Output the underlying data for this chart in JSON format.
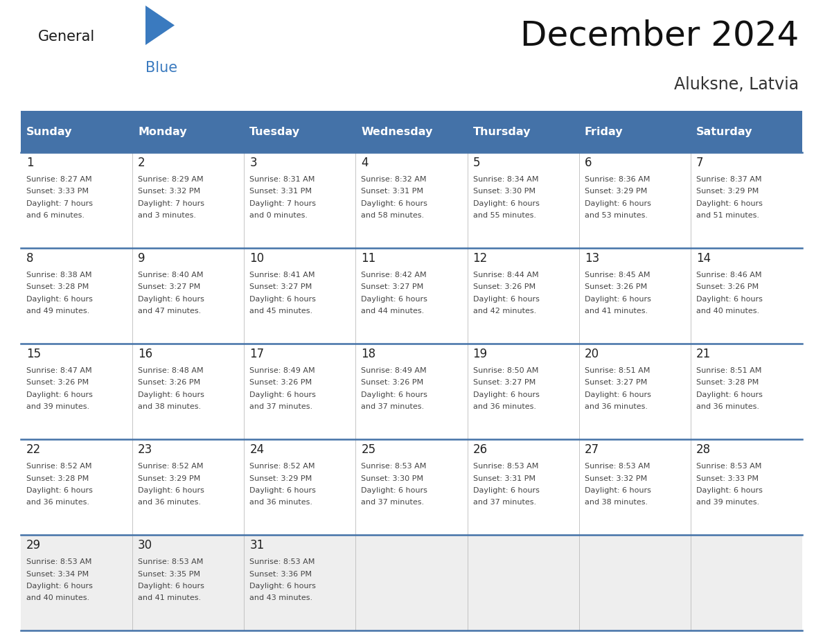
{
  "title": "December 2024",
  "subtitle": "Aluksne, Latvia",
  "days_of_week": [
    "Sunday",
    "Monday",
    "Tuesday",
    "Wednesday",
    "Thursday",
    "Friday",
    "Saturday"
  ],
  "header_bg": "#4472a8",
  "header_text_color": "#ffffff",
  "cell_bg_white": "#ffffff",
  "cell_bg_gray": "#eeeeee",
  "divider_color": "#4472a8",
  "text_color": "#444444",
  "day_num_color": "#222222",
  "logo_general_color": "#1a1a1a",
  "logo_blue_color": "#3a7abf",
  "calendar_data": [
    [
      {
        "day": 1,
        "sunrise": "8:27 AM",
        "sunset": "3:33 PM",
        "daylight": "7 hours",
        "daylight2": "and 6 minutes."
      },
      {
        "day": 2,
        "sunrise": "8:29 AM",
        "sunset": "3:32 PM",
        "daylight": "7 hours",
        "daylight2": "and 3 minutes."
      },
      {
        "day": 3,
        "sunrise": "8:31 AM",
        "sunset": "3:31 PM",
        "daylight": "7 hours",
        "daylight2": "and 0 minutes."
      },
      {
        "day": 4,
        "sunrise": "8:32 AM",
        "sunset": "3:31 PM",
        "daylight": "6 hours",
        "daylight2": "and 58 minutes."
      },
      {
        "day": 5,
        "sunrise": "8:34 AM",
        "sunset": "3:30 PM",
        "daylight": "6 hours",
        "daylight2": "and 55 minutes."
      },
      {
        "day": 6,
        "sunrise": "8:36 AM",
        "sunset": "3:29 PM",
        "daylight": "6 hours",
        "daylight2": "and 53 minutes."
      },
      {
        "day": 7,
        "sunrise": "8:37 AM",
        "sunset": "3:29 PM",
        "daylight": "6 hours",
        "daylight2": "and 51 minutes."
      }
    ],
    [
      {
        "day": 8,
        "sunrise": "8:38 AM",
        "sunset": "3:28 PM",
        "daylight": "6 hours",
        "daylight2": "and 49 minutes."
      },
      {
        "day": 9,
        "sunrise": "8:40 AM",
        "sunset": "3:27 PM",
        "daylight": "6 hours",
        "daylight2": "and 47 minutes."
      },
      {
        "day": 10,
        "sunrise": "8:41 AM",
        "sunset": "3:27 PM",
        "daylight": "6 hours",
        "daylight2": "and 45 minutes."
      },
      {
        "day": 11,
        "sunrise": "8:42 AM",
        "sunset": "3:27 PM",
        "daylight": "6 hours",
        "daylight2": "and 44 minutes."
      },
      {
        "day": 12,
        "sunrise": "8:44 AM",
        "sunset": "3:26 PM",
        "daylight": "6 hours",
        "daylight2": "and 42 minutes."
      },
      {
        "day": 13,
        "sunrise": "8:45 AM",
        "sunset": "3:26 PM",
        "daylight": "6 hours",
        "daylight2": "and 41 minutes."
      },
      {
        "day": 14,
        "sunrise": "8:46 AM",
        "sunset": "3:26 PM",
        "daylight": "6 hours",
        "daylight2": "and 40 minutes."
      }
    ],
    [
      {
        "day": 15,
        "sunrise": "8:47 AM",
        "sunset": "3:26 PM",
        "daylight": "6 hours",
        "daylight2": "and 39 minutes."
      },
      {
        "day": 16,
        "sunrise": "8:48 AM",
        "sunset": "3:26 PM",
        "daylight": "6 hours",
        "daylight2": "and 38 minutes."
      },
      {
        "day": 17,
        "sunrise": "8:49 AM",
        "sunset": "3:26 PM",
        "daylight": "6 hours",
        "daylight2": "and 37 minutes."
      },
      {
        "day": 18,
        "sunrise": "8:49 AM",
        "sunset": "3:26 PM",
        "daylight": "6 hours",
        "daylight2": "and 37 minutes."
      },
      {
        "day": 19,
        "sunrise": "8:50 AM",
        "sunset": "3:27 PM",
        "daylight": "6 hours",
        "daylight2": "and 36 minutes."
      },
      {
        "day": 20,
        "sunrise": "8:51 AM",
        "sunset": "3:27 PM",
        "daylight": "6 hours",
        "daylight2": "and 36 minutes."
      },
      {
        "day": 21,
        "sunrise": "8:51 AM",
        "sunset": "3:28 PM",
        "daylight": "6 hours",
        "daylight2": "and 36 minutes."
      }
    ],
    [
      {
        "day": 22,
        "sunrise": "8:52 AM",
        "sunset": "3:28 PM",
        "daylight": "6 hours",
        "daylight2": "and 36 minutes."
      },
      {
        "day": 23,
        "sunrise": "8:52 AM",
        "sunset": "3:29 PM",
        "daylight": "6 hours",
        "daylight2": "and 36 minutes."
      },
      {
        "day": 24,
        "sunrise": "8:52 AM",
        "sunset": "3:29 PM",
        "daylight": "6 hours",
        "daylight2": "and 36 minutes."
      },
      {
        "day": 25,
        "sunrise": "8:53 AM",
        "sunset": "3:30 PM",
        "daylight": "6 hours",
        "daylight2": "and 37 minutes."
      },
      {
        "day": 26,
        "sunrise": "8:53 AM",
        "sunset": "3:31 PM",
        "daylight": "6 hours",
        "daylight2": "and 37 minutes."
      },
      {
        "day": 27,
        "sunrise": "8:53 AM",
        "sunset": "3:32 PM",
        "daylight": "6 hours",
        "daylight2": "and 38 minutes."
      },
      {
        "day": 28,
        "sunrise": "8:53 AM",
        "sunset": "3:33 PM",
        "daylight": "6 hours",
        "daylight2": "and 39 minutes."
      }
    ],
    [
      {
        "day": 29,
        "sunrise": "8:53 AM",
        "sunset": "3:34 PM",
        "daylight": "6 hours",
        "daylight2": "and 40 minutes."
      },
      {
        "day": 30,
        "sunrise": "8:53 AM",
        "sunset": "3:35 PM",
        "daylight": "6 hours",
        "daylight2": "and 41 minutes."
      },
      {
        "day": 31,
        "sunrise": "8:53 AM",
        "sunset": "3:36 PM",
        "daylight": "6 hours",
        "daylight2": "and 43 minutes."
      },
      null,
      null,
      null,
      null
    ]
  ]
}
